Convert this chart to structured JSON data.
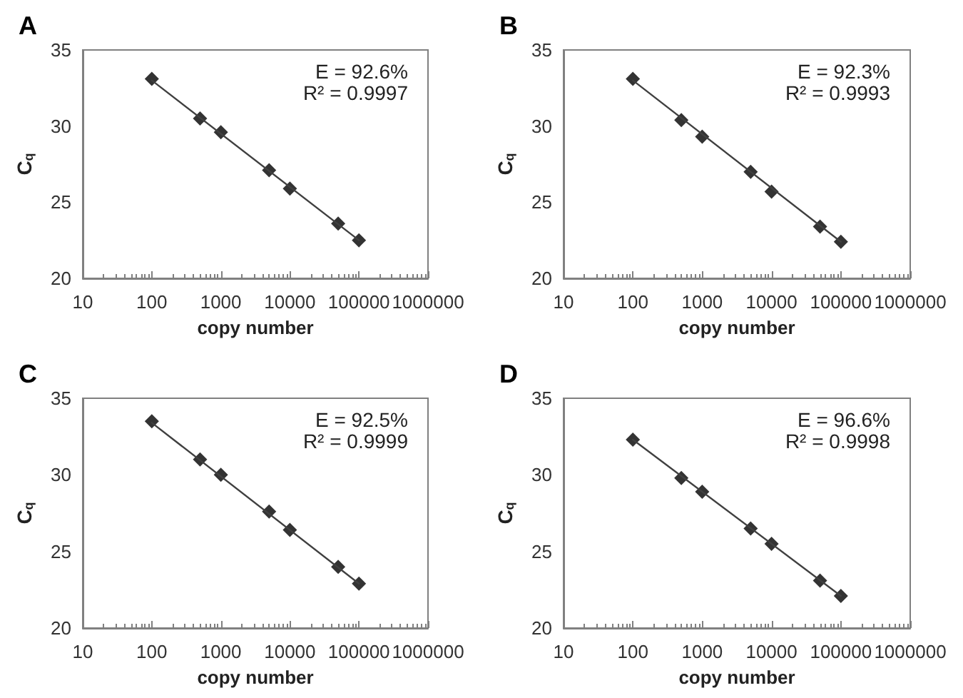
{
  "chart_data": [
    {
      "type": "scatter",
      "title": "A",
      "xlabel": "copy number",
      "ylabel": "C$_{q}$",
      "annotations": [
        "E = 92.6%",
        "R² = 0.9997"
      ],
      "log": "x",
      "marker": "diamond",
      "x": [
        100,
        500,
        1000,
        5000,
        10000,
        50000,
        100000
      ],
      "xlim": [
        10,
        1000000
      ],
      "xticks": [
        10,
        100,
        1000,
        10000,
        100000,
        1000000
      ],
      "ylim": [
        20,
        35
      ],
      "yticks": [
        20,
        25,
        30,
        35
      ],
      "series": [
        {
          "color": "#000000",
          "values": [
            33.1,
            30.5,
            29.6,
            27.1,
            25.9,
            23.6,
            22.5
          ]
        },
        {
          "type": "line",
          "color": "#404040",
          "marker": "none",
          "line_style": "solid",
          "values": [
            33.0,
            null,
            null,
            null,
            null,
            null,
            22.5
          ]
        }
      ]
    },
    {
      "type": "scatter",
      "title": "B",
      "xlabel": "copy number",
      "ylabel": "C$_{q}$",
      "annotations": [
        "E = 92.3%",
        "R² = 0.9993"
      ],
      "log": "x",
      "marker": "diamond",
      "x": [
        100,
        500,
        1000,
        5000,
        10000,
        50000,
        100000
      ],
      "xlim": [
        10,
        1000000
      ],
      "xticks": [
        10,
        100,
        1000,
        10000,
        100000,
        1000000
      ],
      "ylim": [
        20,
        35
      ],
      "yticks": [
        20,
        25,
        30,
        35
      ],
      "series": [
        {
          "color": "#000000",
          "values": [
            33.1,
            30.4,
            29.3,
            27.0,
            25.7,
            23.4,
            22.4
          ]
        },
        {
          "type": "line",
          "color": "#404040",
          "marker": "none",
          "line_style": "solid",
          "values": [
            33.0,
            null,
            null,
            null,
            null,
            null,
            22.4
          ]
        }
      ]
    },
    {
      "type": "scatter",
      "title": "C",
      "xlabel": "copy number",
      "ylabel": "C$_{q}$",
      "annotations": [
        "E = 92.5%",
        "R² = 0.9999"
      ],
      "log": "x",
      "marker": "diamond",
      "x": [
        100,
        500,
        1000,
        5000,
        10000,
        50000,
        100000
      ],
      "xlim": [
        10,
        1000000
      ],
      "xticks": [
        10,
        100,
        1000,
        10000,
        100000,
        1000000
      ],
      "ylim": [
        20,
        35
      ],
      "yticks": [
        20,
        25,
        30,
        35
      ],
      "series": [
        {
          "color": "#000000",
          "values": [
            33.5,
            31.0,
            30.0,
            27.6,
            26.4,
            24.0,
            22.9
          ]
        },
        {
          "type": "line",
          "color": "#404040",
          "marker": "none",
          "line_style": "solid",
          "values": [
            33.4,
            null,
            null,
            null,
            null,
            null,
            22.9
          ]
        }
      ]
    },
    {
      "type": "scatter",
      "title": "D",
      "xlabel": "copy number",
      "ylabel": "C$_{q}$",
      "annotations": [
        "E = 96.6%",
        "R² = 0.9998"
      ],
      "log": "x",
      "marker": "diamond",
      "x": [
        100,
        500,
        1000,
        5000,
        10000,
        50000,
        100000
      ],
      "xlim": [
        10,
        1000000
      ],
      "xticks": [
        10,
        100,
        1000,
        10000,
        100000,
        1000000
      ],
      "ylim": [
        20,
        35
      ],
      "yticks": [
        20,
        25,
        30,
        35
      ],
      "series": [
        {
          "color": "#000000",
          "values": [
            32.3,
            29.8,
            28.9,
            26.5,
            25.5,
            23.1,
            22.1
          ]
        },
        {
          "type": "line",
          "color": "#404040",
          "marker": "none",
          "line_style": "solid",
          "values": [
            32.3,
            null,
            null,
            null,
            null,
            null,
            22.1
          ]
        }
      ]
    }
  ]
}
